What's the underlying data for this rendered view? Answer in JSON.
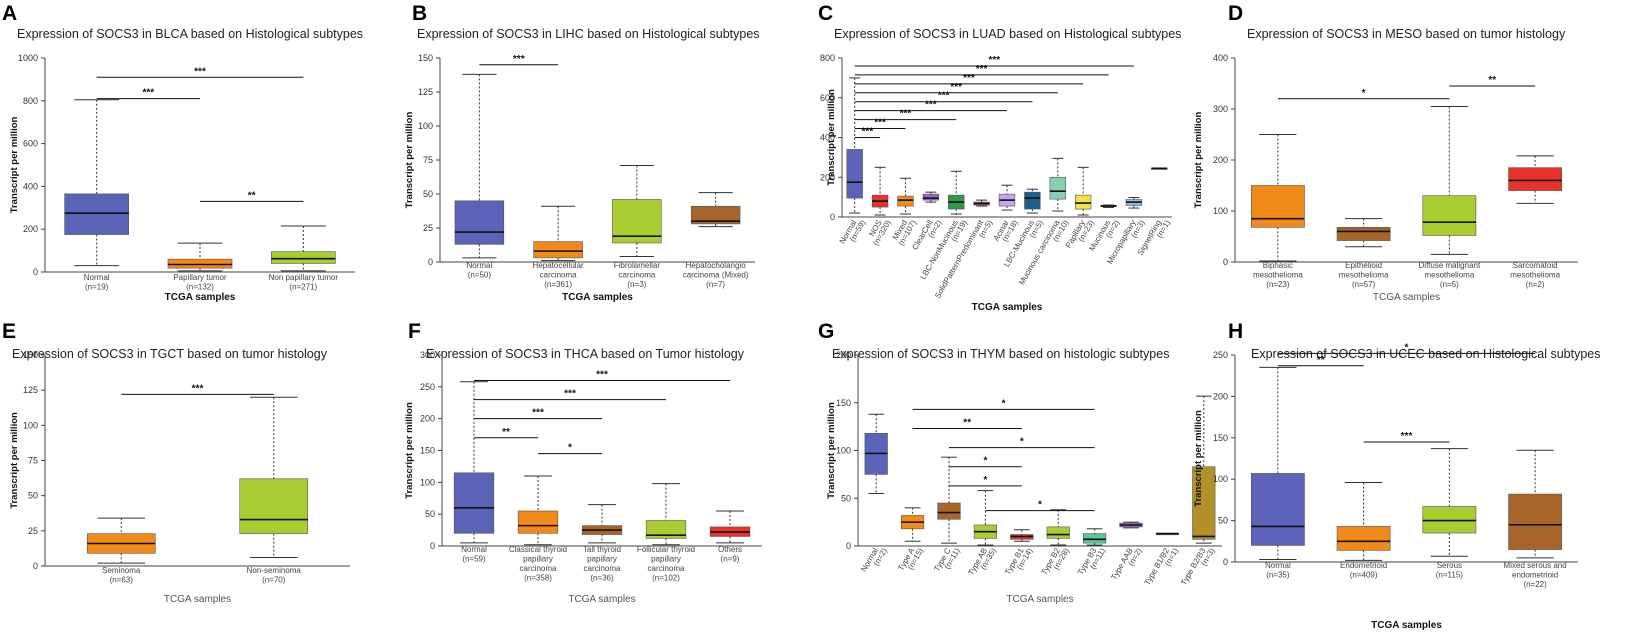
{
  "figure": {
    "colors": {
      "blue": "#5a63b8",
      "orange": "#f28a1a",
      "green": "#aacc33",
      "brown": "#a8652a",
      "red": "#e8322a",
      "purple": "#9a66c8",
      "teal": "#86d1b0",
      "lightblue": "#8fb9e8",
      "yellow": "#f2e04a",
      "olive": "#b39128",
      "navy": "#1f5f8b",
      "dkgreen": "#2f9a4a",
      "pink": "#cc3d6f",
      "black": "#222222",
      "darkgray": "#555555",
      "lilac": "#c8a6e8",
      "seagreen": "#58c898",
      "gray": "#999999"
    }
  },
  "chart_data": [
    {
      "letter": "A",
      "type": "box",
      "title": "Expression of SOCS3 in BLCA based on Histological subtypes",
      "ylabel": "Transcript per million",
      "xlabel": "TCGA samples",
      "xlabel_bold": true,
      "ylim": [
        0,
        1000
      ],
      "yticks": [
        0,
        200,
        400,
        600,
        800,
        1000
      ],
      "categories": [
        {
          "name": "Normal",
          "n": "(n=19)",
          "lines": [
            "Normal",
            "(n=19)"
          ],
          "color": "blue",
          "min": 30,
          "q1": 175,
          "median": 275,
          "q3": 365,
          "max": 805
        },
        {
          "name": "Papillary tumor",
          "n": "(n=132)",
          "lines": [
            "Papillary tumor",
            "(n=132)"
          ],
          "color": "orange",
          "min": 5,
          "q1": 18,
          "median": 35,
          "q3": 60,
          "max": 135
        },
        {
          "name": "Non papillary tumor",
          "n": "(n=271)",
          "lines": [
            "Non papillary tumor",
            "(n=271)"
          ],
          "color": "green",
          "min": 5,
          "q1": 40,
          "median": 62,
          "q3": 95,
          "max": 215
        }
      ],
      "significance": [
        {
          "from": 0,
          "to": 2,
          "label": "***",
          "value": 910
        },
        {
          "from": 0,
          "to": 1,
          "label": "***",
          "value": 810
        },
        {
          "from": 1,
          "to": 2,
          "label": "**",
          "value": 330
        }
      ]
    },
    {
      "letter": "B",
      "type": "box",
      "title": "Expression of SOCS3 in LIHC based on Histological subtypes",
      "ylabel": "Transcript per million",
      "xlabel": "TCGA samples",
      "xlabel_bold": true,
      "ylim": [
        0,
        150
      ],
      "yticks": [
        0,
        25,
        50,
        75,
        100,
        125,
        150
      ],
      "categories": [
        {
          "name": "Normal",
          "n": "(n=50)",
          "lines": [
            "Normal",
            "(n=50)"
          ],
          "color": "blue",
          "min": 3,
          "q1": 13,
          "median": 22,
          "q3": 45,
          "max": 138
        },
        {
          "name": "Hepatocellular carcinoma",
          "n": "(n=361)",
          "lines": [
            "Hepatocellular",
            "carcinoma",
            "(n=361)"
          ],
          "color": "orange",
          "min": 1,
          "q1": 3,
          "median": 8,
          "q3": 15,
          "max": 41
        },
        {
          "name": "Fibrolamellar carcinoma",
          "n": "(n=3)",
          "lines": [
            "Fibrolamellar",
            "carcinoma",
            "(n=3)"
          ],
          "color": "green",
          "min": 4,
          "q1": 14,
          "median": 19,
          "q3": 46,
          "max": 71
        },
        {
          "name": "Hepatocholangio carcinoma (Mixed)",
          "n": "(n=7)",
          "lines": [
            "Hepatocholangio",
            "carcinoma (Mixed)",
            "(n=7)"
          ],
          "color": "brown",
          "min": 26,
          "q1": 28,
          "median": 30,
          "q3": 41,
          "max": 51
        }
      ],
      "significance": [
        {
          "from": 0,
          "to": 1,
          "label": "***",
          "value": 145
        }
      ]
    },
    {
      "letter": "C",
      "type": "box",
      "title": "Expression of SOCS3 in LUAD based on Histological subtypes",
      "ylabel": "Transcript per million",
      "xlabel": "TCGA samples",
      "xlabel_bold": true,
      "ylim": [
        0,
        800
      ],
      "yticks": [
        0,
        200,
        400,
        600,
        800
      ],
      "rotate_labels": true,
      "categories": [
        {
          "name": "Normal",
          "n": "(n=59)",
          "color": "blue",
          "min": 20,
          "q1": 95,
          "median": 175,
          "q3": 340,
          "max": 700
        },
        {
          "name": "NOS",
          "n": "(n=320)",
          "color": "red",
          "min": 10,
          "q1": 50,
          "median": 80,
          "q3": 110,
          "max": 250
        },
        {
          "name": "Mixed",
          "n": "(n=107)",
          "color": "orange",
          "min": 15,
          "q1": 55,
          "median": 85,
          "q3": 105,
          "max": 195
        },
        {
          "name": "ClearCell",
          "n": "(n=2)",
          "color": "purple",
          "min": 75,
          "q1": 85,
          "median": 95,
          "q3": 115,
          "max": 125
        },
        {
          "name": "LBC-NonMucinous",
          "n": "(n=19)",
          "color": "dkgreen",
          "min": 15,
          "q1": 40,
          "median": 75,
          "q3": 110,
          "max": 230
        },
        {
          "name": "SolidPatternPredominant",
          "n": "(n=5)",
          "color": "pink",
          "min": 55,
          "q1": 60,
          "median": 68,
          "q3": 75,
          "max": 85
        },
        {
          "name": "Acinar",
          "n": "(n=18)",
          "color": "lilac",
          "min": 35,
          "q1": 55,
          "median": 85,
          "q3": 115,
          "max": 160
        },
        {
          "name": "LBC-Mucinous",
          "n": "(n=5)",
          "color": "navy",
          "min": 20,
          "q1": 40,
          "median": 95,
          "q3": 125,
          "max": 140
        },
        {
          "name": "Mucinous carcinoma",
          "n": "(n=10)",
          "color": "teal",
          "min": 30,
          "q1": 90,
          "median": 130,
          "q3": 200,
          "max": 295
        },
        {
          "name": "Papillary",
          "n": "(n=23)",
          "color": "yellow",
          "min": 10,
          "q1": 40,
          "median": 70,
          "q3": 110,
          "max": 250
        },
        {
          "name": "Mucinous",
          "n": "(n=2)",
          "color": "black",
          "min": 48,
          "q1": 52,
          "median": 56,
          "q3": 58,
          "max": 60
        },
        {
          "name": "Micropapillary",
          "n": "(n=3)",
          "color": "lightblue",
          "min": 45,
          "q1": 58,
          "median": 75,
          "q3": 88,
          "max": 98
        },
        {
          "name": "SignetRing",
          "n": "(n=1)",
          "color": "gray",
          "min": 245,
          "q1": 245,
          "median": 245,
          "q3": 245,
          "max": 245
        }
      ],
      "significance": [
        {
          "from": 0,
          "to": 1,
          "label": "***",
          "value": 400
        },
        {
          "from": 0,
          "to": 2,
          "label": "***",
          "value": 445
        },
        {
          "from": 0,
          "to": 4,
          "label": "***",
          "value": 490
        },
        {
          "from": 0,
          "to": 6,
          "label": "***",
          "value": 535
        },
        {
          "from": 0,
          "to": 7,
          "label": "***",
          "value": 580
        },
        {
          "from": 0,
          "to": 8,
          "label": "***",
          "value": 625
        },
        {
          "from": 0,
          "to": 9,
          "label": "***",
          "value": 670
        },
        {
          "from": 0,
          "to": 10,
          "label": "***",
          "value": 715
        },
        {
          "from": 0,
          "to": 11,
          "label": "***",
          "value": 760
        }
      ]
    },
    {
      "letter": "D",
      "type": "box",
      "title": "Expression of SOCS3 in MESO based on tumor histology",
      "ylabel": "Transcript per million",
      "xlabel": "TCGA samples",
      "xlabel_bold": false,
      "ylim": [
        0,
        400
      ],
      "yticks": [
        0,
        100,
        200,
        300,
        400
      ],
      "categories": [
        {
          "name": "Biphasic mesothelioma",
          "n": "(n=23)",
          "lines": [
            "Biphasic",
            "mesothelioma",
            "(n=23)"
          ],
          "color": "orange",
          "min": 2,
          "q1": 68,
          "median": 85,
          "q3": 150,
          "max": 250
        },
        {
          "name": "Epithelioid mesothelioma",
          "n": "(n=57)",
          "lines": [
            "Epithelioid",
            "mesothelioma",
            "(n=57)"
          ],
          "color": "brown",
          "min": 30,
          "q1": 42,
          "median": 60,
          "q3": 68,
          "max": 85
        },
        {
          "name": "Diffuse malignant mesothelioma",
          "n": "(n=5)",
          "lines": [
            "Diffuse malignant",
            "mesothelioma",
            "(n=5)"
          ],
          "color": "green",
          "min": 15,
          "q1": 52,
          "median": 78,
          "q3": 130,
          "max": 305
        },
        {
          "name": "Sarcomatoid mesothelioma",
          "n": "(n=2)",
          "lines": [
            "Sarcomatoid",
            "mesothelioma",
            "(n=2)"
          ],
          "color": "red",
          "min": 115,
          "q1": 140,
          "median": 160,
          "q3": 185,
          "max": 208
        }
      ],
      "significance": [
        {
          "from": 0,
          "to": 2,
          "label": "*",
          "value": 320
        },
        {
          "from": 2,
          "to": 3,
          "label": "**",
          "value": 345
        }
      ]
    },
    {
      "letter": "E",
      "type": "box",
      "title": "Expression of SOCS3 in TGCT based on tumor histology",
      "ylabel": "Transcript per million",
      "xlabel": "TCGA samples",
      "xlabel_bold": false,
      "ylim": [
        0,
        150
      ],
      "yticks": [
        0,
        25,
        50,
        75,
        100,
        125,
        150
      ],
      "categories": [
        {
          "name": "Seminoma",
          "n": "(n=63)",
          "lines": [
            "Seminoma",
            "(n=63)"
          ],
          "color": "orange",
          "min": 2,
          "q1": 9,
          "median": 16,
          "q3": 23,
          "max": 34
        },
        {
          "name": "Non-seminoma",
          "n": "(n=70)",
          "lines": [
            "Non-seminoma",
            "(n=70)"
          ],
          "color": "green",
          "min": 6,
          "q1": 23,
          "median": 33,
          "q3": 62,
          "max": 120
        }
      ],
      "significance": [
        {
          "from": 0,
          "to": 1,
          "label": "***",
          "value": 122
        }
      ]
    },
    {
      "letter": "F",
      "type": "box",
      "title": "Expression of SOCS3 in THCA based on Tumor histology",
      "ylabel": "Transcript per million",
      "xlabel": "TCGA samples",
      "xlabel_bold": false,
      "ylim": [
        0,
        300
      ],
      "yticks": [
        0,
        50,
        100,
        150,
        200,
        250,
        300
      ],
      "categories": [
        {
          "name": "Normal",
          "n": "(n=59)",
          "lines": [
            "Normal",
            "(n=59)"
          ],
          "color": "blue",
          "min": 5,
          "q1": 20,
          "median": 60,
          "q3": 115,
          "max": 258
        },
        {
          "name": "Classical thyroid papillary carcinoma",
          "n": "(n=358)",
          "lines": [
            "Classical thyroid",
            "papillary",
            "carcinoma",
            "(n=358)"
          ],
          "color": "orange",
          "min": 2,
          "q1": 20,
          "median": 32,
          "q3": 55,
          "max": 110
        },
        {
          "name": "Tall thyroid papillary carcinoma",
          "n": "(n=36)",
          "lines": [
            "Tall thyroid",
            "papillary",
            "carcinoma",
            "(n=36)"
          ],
          "color": "brown",
          "min": 5,
          "q1": 18,
          "median": 25,
          "q3": 32,
          "max": 65
        },
        {
          "name": "Follicular thyroid papillary carcinoma",
          "n": "(n=102)",
          "lines": [
            "Follicular thyroid",
            "papillary",
            "carcinoma",
            "(n=102)"
          ],
          "color": "green",
          "min": 2,
          "q1": 12,
          "median": 17,
          "q3": 40,
          "max": 98
        },
        {
          "name": "Others",
          "n": "(n=9)",
          "lines": [
            "Others",
            "(n=9)"
          ],
          "color": "red",
          "min": 5,
          "q1": 15,
          "median": 22,
          "q3": 30,
          "max": 55
        }
      ],
      "significance": [
        {
          "from": 0,
          "to": 1,
          "label": "**",
          "value": 170
        },
        {
          "from": 1,
          "to": 2,
          "label": "*",
          "value": 145
        },
        {
          "from": 0,
          "to": 2,
          "label": "***",
          "value": 200
        },
        {
          "from": 0,
          "to": 3,
          "label": "***",
          "value": 230
        },
        {
          "from": 0,
          "to": 4,
          "label": "***",
          "value": 260
        }
      ]
    },
    {
      "letter": "G",
      "type": "box",
      "title": "Expression of SOCS3 in THYM based on histologic subtypes",
      "ylabel": "Transcript per million",
      "xlabel": "TCGA samples",
      "xlabel_bold": false,
      "ylim": [
        0,
        200
      ],
      "yticks": [
        0,
        50,
        100,
        150,
        200
      ],
      "rotate_labels": true,
      "categories": [
        {
          "name": "Normal",
          "n": "(n=2)",
          "color": "blue",
          "min": 55,
          "q1": 75,
          "median": 97,
          "q3": 118,
          "max": 138
        },
        {
          "name": "Type A",
          "n": "(n=15)",
          "color": "orange",
          "min": 5,
          "q1": 18,
          "median": 25,
          "q3": 32,
          "max": 40
        },
        {
          "name": "Type C",
          "n": "(n=11)",
          "color": "brown",
          "min": 3,
          "q1": 28,
          "median": 35,
          "q3": 45,
          "max": 93
        },
        {
          "name": "Type AB",
          "n": "(n=35)",
          "color": "green",
          "min": 1,
          "q1": 8,
          "median": 15,
          "q3": 22,
          "max": 58
        },
        {
          "name": "Type B1",
          "n": "(n=14)",
          "color": "red",
          "min": 5,
          "q1": 7,
          "median": 10,
          "q3": 12,
          "max": 17
        },
        {
          "name": "Type B2",
          "n": "(n=28)",
          "color": "green",
          "min": 1,
          "q1": 8,
          "median": 12,
          "q3": 20,
          "max": 38
        },
        {
          "name": "Type B3",
          "n": "(n=11)",
          "color": "seagreen",
          "min": 1,
          "q1": 3,
          "median": 7,
          "q3": 13,
          "max": 18
        },
        {
          "name": "Type AAB",
          "n": "(n=2)",
          "color": "purple",
          "min": 19,
          "q1": 20,
          "median": 22,
          "q3": 24,
          "max": 25
        },
        {
          "name": "Type B1/B2",
          "n": "(n=1)",
          "color": "darkgray",
          "min": 13,
          "q1": 13,
          "median": 13,
          "q3": 13,
          "max": 13
        },
        {
          "name": "Type B2/B3",
          "n": "(n=3)",
          "color": "olive",
          "min": 3,
          "q1": 7,
          "median": 10,
          "q3": 83,
          "max": 157
        }
      ],
      "significance": [
        {
          "from": 1,
          "to": 6,
          "label": "*",
          "value": 143
        },
        {
          "from": 1,
          "to": 4,
          "label": "**",
          "value": 123
        },
        {
          "from": 2,
          "to": 6,
          "label": "*",
          "value": 103
        },
        {
          "from": 2,
          "to": 4,
          "label": "*",
          "value": 83
        },
        {
          "from": 2,
          "to": 4,
          "label": "*",
          "value": 63
        },
        {
          "from": 3,
          "to": 6,
          "label": "*",
          "value": 37
        }
      ]
    },
    {
      "letter": "H",
      "type": "box",
      "title": "Expression of SOCS3 in UCEC based on Histological subtypes",
      "ylabel": "Transcript per million",
      "xlabel": "TCGA samples",
      "xlabel_bold": true,
      "ylim": [
        0,
        250
      ],
      "yticks": [
        0,
        50,
        100,
        150,
        200,
        250
      ],
      "categories": [
        {
          "name": "Normal",
          "n": "(n=35)",
          "lines": [
            "Normal",
            "(n=35)"
          ],
          "color": "blue",
          "min": 3,
          "q1": 20,
          "median": 43,
          "q3": 107,
          "max": 235
        },
        {
          "name": "Endometrioid",
          "n": "(n=409)",
          "lines": [
            "Endometrioid",
            "(n=409)"
          ],
          "color": "orange",
          "min": 2,
          "q1": 14,
          "median": 25,
          "q3": 43,
          "max": 96
        },
        {
          "name": "Serous",
          "n": "(n=115)",
          "lines": [
            "Serous",
            "(n=115)"
          ],
          "color": "green",
          "min": 7,
          "q1": 35,
          "median": 50,
          "q3": 67,
          "max": 137
        },
        {
          "name": "Mixed serous and endometrioid",
          "n": "(n=22)",
          "lines": [
            "Mixed serous and",
            "endometrioid",
            "(n=22)"
          ],
          "color": "brown",
          "min": 5,
          "q1": 15,
          "median": 45,
          "q3": 82,
          "max": 135
        }
      ],
      "significance": [
        {
          "from": 0,
          "to": 3,
          "label": "*",
          "value": 252
        },
        {
          "from": 0,
          "to": 1,
          "label": "**",
          "value": 237
        },
        {
          "from": 1,
          "to": 2,
          "label": "***",
          "value": 145
        }
      ]
    }
  ]
}
